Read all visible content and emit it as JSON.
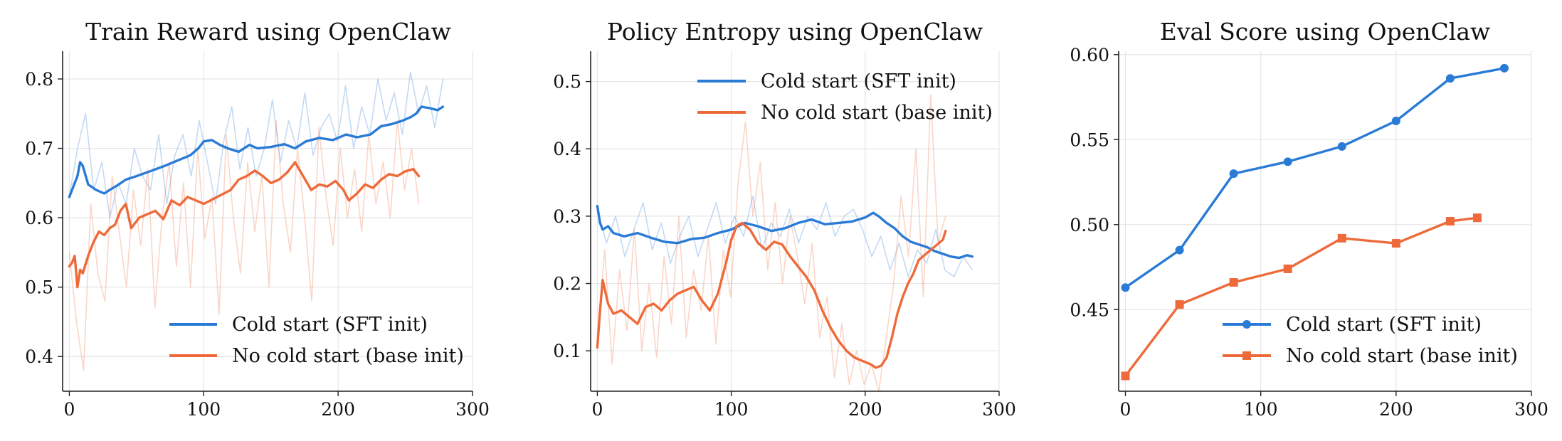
{
  "colors": {
    "blue": "#2a7bd6",
    "orange": "#ee6a3a",
    "grid": "#e6e6e6",
    "axis": "#222222"
  },
  "chart_data": [
    {
      "type": "line",
      "title": "Train Reward using OpenClaw",
      "xlabel": "",
      "ylabel": "",
      "xlim": [
        -5,
        300
      ],
      "ylim": [
        0.35,
        0.84
      ],
      "xticks": [
        0,
        100,
        200,
        300
      ],
      "yticks": [
        0.4,
        0.5,
        0.6,
        0.7,
        0.8
      ],
      "grid": true,
      "legend": "lower-right",
      "series": [
        {
          "name": "Cold start (SFT init)",
          "color": "#2a7bd6",
          "x": [
            0,
            3,
            6,
            8,
            10,
            14,
            20,
            26,
            30,
            36,
            42,
            50,
            60,
            70,
            80,
            90,
            96,
            100,
            106,
            112,
            118,
            126,
            134,
            140,
            150,
            160,
            168,
            176,
            186,
            196,
            206,
            214,
            224,
            232,
            240,
            248,
            254,
            258,
            262,
            268,
            274,
            278
          ],
          "y": [
            0.63,
            0.645,
            0.66,
            0.68,
            0.675,
            0.648,
            0.64,
            0.635,
            0.64,
            0.647,
            0.655,
            0.66,
            0.667,
            0.674,
            0.682,
            0.69,
            0.7,
            0.71,
            0.712,
            0.705,
            0.7,
            0.695,
            0.705,
            0.7,
            0.702,
            0.706,
            0.7,
            0.71,
            0.715,
            0.712,
            0.72,
            0.716,
            0.72,
            0.732,
            0.735,
            0.74,
            0.745,
            0.75,
            0.76,
            0.758,
            0.755,
            0.76
          ],
          "raw": [
            0.63,
            0.7,
            0.75,
            0.64,
            0.68,
            0.6,
            0.65,
            0.62,
            0.7,
            0.66,
            0.64,
            0.72,
            0.62,
            0.69,
            0.72,
            0.66,
            0.74,
            0.68,
            0.62,
            0.71,
            0.76,
            0.67,
            0.73,
            0.66,
            0.7,
            0.77,
            0.68,
            0.74,
            0.7,
            0.78,
            0.69,
            0.73,
            0.75,
            0.71,
            0.79,
            0.7,
            0.76,
            0.72,
            0.8,
            0.74,
            0.78,
            0.72,
            0.81,
            0.75,
            0.79,
            0.73,
            0.8
          ]
        },
        {
          "name": "No cold start (base init)",
          "color": "#ee6a3a",
          "x": [
            0,
            2,
            4,
            6,
            8,
            10,
            14,
            18,
            22,
            26,
            30,
            34,
            38,
            42,
            46,
            52,
            58,
            64,
            70,
            76,
            82,
            88,
            94,
            100,
            110,
            120,
            126,
            132,
            138,
            144,
            150,
            156,
            162,
            168,
            174,
            180,
            186,
            192,
            198,
            204,
            208,
            214,
            220,
            226,
            232,
            238,
            244,
            250,
            256,
            260
          ],
          "y": [
            0.53,
            0.535,
            0.545,
            0.5,
            0.525,
            0.52,
            0.545,
            0.565,
            0.58,
            0.575,
            0.585,
            0.59,
            0.61,
            0.62,
            0.585,
            0.6,
            0.605,
            0.61,
            0.598,
            0.625,
            0.618,
            0.63,
            0.625,
            0.62,
            0.63,
            0.64,
            0.655,
            0.66,
            0.668,
            0.66,
            0.65,
            0.655,
            0.665,
            0.68,
            0.66,
            0.64,
            0.648,
            0.645,
            0.653,
            0.64,
            0.625,
            0.635,
            0.648,
            0.643,
            0.655,
            0.663,
            0.66,
            0.667,
            0.67,
            0.66
          ],
          "raw": [
            0.55,
            0.45,
            0.38,
            0.62,
            0.52,
            0.48,
            0.66,
            0.58,
            0.5,
            0.64,
            0.56,
            0.67,
            0.47,
            0.6,
            0.68,
            0.53,
            0.65,
            0.5,
            0.7,
            0.57,
            0.63,
            0.46,
            0.72,
            0.6,
            0.52,
            0.68,
            0.58,
            0.66,
            0.5,
            0.74,
            0.62,
            0.55,
            0.7,
            0.6,
            0.48,
            0.73,
            0.63,
            0.56,
            0.7,
            0.6,
            0.67,
            0.58,
            0.72,
            0.62,
            0.68,
            0.6,
            0.74,
            0.64,
            0.7,
            0.62
          ]
        }
      ]
    },
    {
      "type": "line",
      "title": "Policy Entropy using OpenClaw",
      "xlabel": "",
      "ylabel": "",
      "xlim": [
        -5,
        300
      ],
      "ylim": [
        0.04,
        0.545
      ],
      "xticks": [
        0,
        100,
        200,
        300
      ],
      "yticks": [
        0.1,
        0.2,
        0.3,
        0.4,
        0.5
      ],
      "grid": true,
      "legend": "top-right",
      "series": [
        {
          "name": "Cold start (SFT init)",
          "color": "#2a7bd6",
          "x": [
            0,
            2,
            4,
            8,
            12,
            20,
            30,
            40,
            50,
            60,
            70,
            80,
            90,
            100,
            110,
            120,
            130,
            140,
            150,
            160,
            170,
            180,
            190,
            200,
            206,
            210,
            216,
            222,
            228,
            234,
            240,
            246,
            252,
            258,
            264,
            270,
            276,
            280
          ],
          "y": [
            0.315,
            0.29,
            0.28,
            0.285,
            0.275,
            0.27,
            0.275,
            0.268,
            0.262,
            0.26,
            0.266,
            0.268,
            0.275,
            0.28,
            0.29,
            0.285,
            0.278,
            0.282,
            0.29,
            0.295,
            0.288,
            0.29,
            0.292,
            0.298,
            0.305,
            0.3,
            0.29,
            0.282,
            0.27,
            0.262,
            0.258,
            0.254,
            0.248,
            0.244,
            0.24,
            0.238,
            0.242,
            0.24
          ],
          "raw": [
            0.31,
            0.26,
            0.3,
            0.24,
            0.28,
            0.32,
            0.25,
            0.29,
            0.23,
            0.27,
            0.3,
            0.24,
            0.28,
            0.32,
            0.26,
            0.3,
            0.27,
            0.33,
            0.25,
            0.29,
            0.27,
            0.31,
            0.26,
            0.3,
            0.28,
            0.32,
            0.27,
            0.3,
            0.31,
            0.28,
            0.24,
            0.27,
            0.22,
            0.26,
            0.21,
            0.25,
            0.23,
            0.28,
            0.22,
            0.21,
            0.24,
            0.22
          ]
        },
        {
          "name": "No cold start (base init)",
          "color": "#ee6a3a",
          "x": [
            0,
            2,
            4,
            8,
            12,
            18,
            24,
            30,
            36,
            42,
            48,
            54,
            60,
            66,
            72,
            78,
            84,
            90,
            96,
            100,
            104,
            108,
            114,
            120,
            126,
            132,
            138,
            144,
            150,
            156,
            162,
            168,
            174,
            180,
            186,
            192,
            198,
            204,
            208,
            212,
            216,
            220,
            224,
            228,
            232,
            236,
            240,
            246,
            252,
            258,
            260
          ],
          "y": [
            0.105,
            0.16,
            0.205,
            0.17,
            0.155,
            0.16,
            0.15,
            0.14,
            0.165,
            0.17,
            0.16,
            0.175,
            0.185,
            0.19,
            0.195,
            0.175,
            0.16,
            0.185,
            0.23,
            0.265,
            0.285,
            0.29,
            0.28,
            0.26,
            0.25,
            0.262,
            0.258,
            0.24,
            0.225,
            0.21,
            0.19,
            0.16,
            0.135,
            0.115,
            0.1,
            0.09,
            0.085,
            0.08,
            0.075,
            0.078,
            0.09,
            0.12,
            0.155,
            0.18,
            0.2,
            0.215,
            0.235,
            0.245,
            0.255,
            0.265,
            0.278
          ],
          "raw": [
            0.12,
            0.25,
            0.08,
            0.22,
            0.13,
            0.28,
            0.1,
            0.2,
            0.09,
            0.24,
            0.14,
            0.3,
            0.12,
            0.22,
            0.16,
            0.27,
            0.11,
            0.25,
            0.18,
            0.35,
            0.44,
            0.3,
            0.38,
            0.22,
            0.32,
            0.2,
            0.3,
            0.24,
            0.17,
            0.26,
            0.12,
            0.18,
            0.06,
            0.14,
            0.05,
            0.1,
            0.05,
            0.08,
            0.04,
            0.12,
            0.2,
            0.33,
            0.24,
            0.4,
            0.18,
            0.48,
            0.26,
            0.3
          ]
        }
      ]
    },
    {
      "type": "line",
      "title": "Eval Score using OpenClaw",
      "xlabel": "",
      "ylabel": "",
      "xlim": [
        -5,
        300
      ],
      "ylim": [
        0.402,
        0.602
      ],
      "xticks": [
        0,
        100,
        200,
        300
      ],
      "yticks": [
        0.45,
        0.5,
        0.55,
        0.6
      ],
      "grid": true,
      "legend": "lower-right",
      "series": [
        {
          "name": "Cold start (SFT init)",
          "color": "#2a7bd6",
          "marker": "circle",
          "x": [
            0,
            40,
            80,
            120,
            160,
            200,
            240,
            280
          ],
          "y": [
            0.463,
            0.485,
            0.53,
            0.537,
            0.546,
            0.561,
            0.586,
            0.592
          ]
        },
        {
          "name": "No cold start (base init)",
          "color": "#ee6a3a",
          "marker": "square",
          "x": [
            0,
            40,
            80,
            120,
            160,
            200,
            240,
            260
          ],
          "y": [
            0.411,
            0.453,
            0.466,
            0.474,
            0.492,
            0.489,
            0.502,
            0.504
          ]
        }
      ]
    }
  ]
}
